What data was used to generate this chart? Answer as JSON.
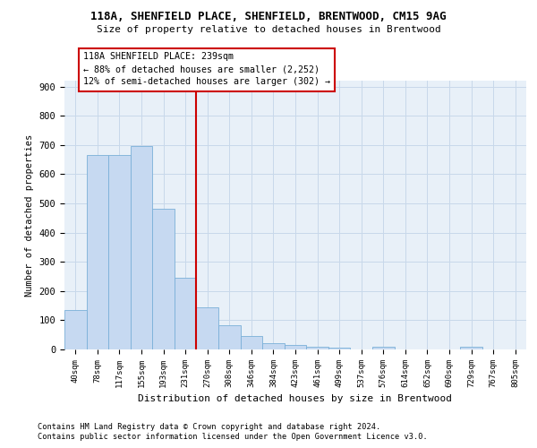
{
  "title1": "118A, SHENFIELD PLACE, SHENFIELD, BRENTWOOD, CM15 9AG",
  "title2": "Size of property relative to detached houses in Brentwood",
  "xlabel": "Distribution of detached houses by size in Brentwood",
  "ylabel": "Number of detached properties",
  "bar_labels": [
    "40sqm",
    "78sqm",
    "117sqm",
    "155sqm",
    "193sqm",
    "231sqm",
    "270sqm",
    "308sqm",
    "346sqm",
    "384sqm",
    "423sqm",
    "461sqm",
    "499sqm",
    "537sqm",
    "576sqm",
    "614sqm",
    "652sqm",
    "690sqm",
    "729sqm",
    "767sqm",
    "805sqm"
  ],
  "bar_values": [
    135,
    665,
    665,
    695,
    480,
    245,
    145,
    82,
    47,
    22,
    15,
    10,
    5,
    0,
    8,
    0,
    0,
    0,
    8,
    0,
    0
  ],
  "bar_color": "#c6d9f1",
  "bar_edge_color": "#7ab0d8",
  "grid_color": "#c8d8ea",
  "annotation_line1": "118A SHENFIELD PLACE: 239sqm",
  "annotation_line2": "← 88% of detached houses are smaller (2,252)",
  "annotation_line3": "12% of semi-detached houses are larger (302) →",
  "vline_x": 5.5,
  "vline_color": "#cc0000",
  "box_color": "#cc0000",
  "ylim": [
    0,
    920
  ],
  "yticks": [
    0,
    100,
    200,
    300,
    400,
    500,
    600,
    700,
    800,
    900
  ],
  "footnote1": "Contains HM Land Registry data © Crown copyright and database right 2024.",
  "footnote2": "Contains public sector information licensed under the Open Government Licence v3.0.",
  "bg_color": "#ffffff",
  "plot_bg_color": "#e8f0f8"
}
